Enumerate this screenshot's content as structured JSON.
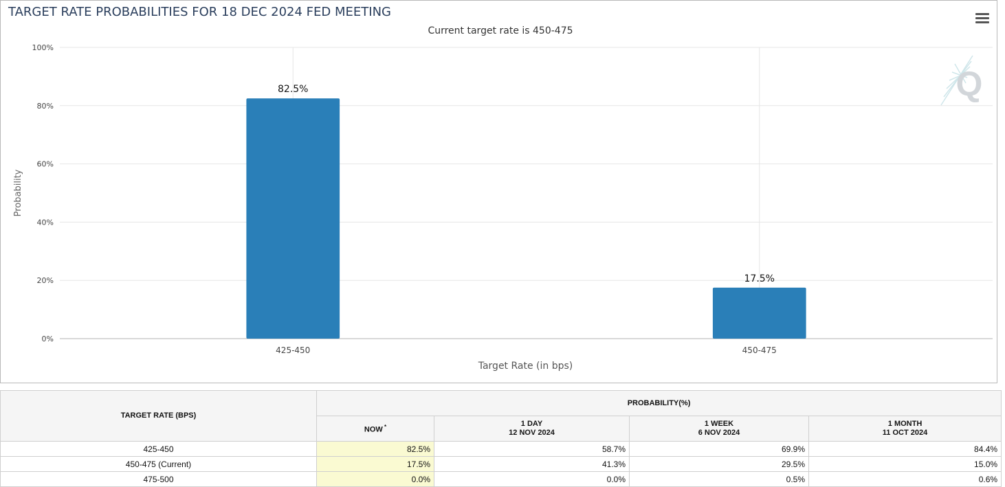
{
  "chart": {
    "title": "TARGET RATE PROBABILITIES FOR 18 DEC 2024 FED MEETING",
    "subtitle": "Current target rate is 450-475",
    "watermark_letter": "Q",
    "menu_icon": "hamburger-menu-icon"
  },
  "chart_data": {
    "type": "bar",
    "title": "TARGET RATE PROBABILITIES FOR 18 DEC 2024 FED MEETING",
    "subtitle": "Current target rate is 450-475",
    "categories": [
      "425-450",
      "450-475"
    ],
    "values": [
      82.5,
      17.5
    ],
    "data_labels": [
      "82.5%",
      "17.5%"
    ],
    "xlabel": "Target Rate (in bps)",
    "ylabel": "Probability",
    "ylim": [
      0,
      100
    ],
    "yticks": [
      0,
      20,
      40,
      60,
      80,
      100
    ],
    "ytick_labels": [
      "0%",
      "20%",
      "40%",
      "60%",
      "80%",
      "100%"
    ],
    "grid": true,
    "legend": "none",
    "bar_color": "#2a7fb8"
  },
  "table": {
    "rate_header": "TARGET RATE (BPS)",
    "prob_header": "PROBABILITY(%)",
    "columns": [
      {
        "line1": "NOW",
        "line2": "",
        "marker": "*"
      },
      {
        "line1": "1 DAY",
        "line2": "12 NOV 2024",
        "marker": ""
      },
      {
        "line1": "1 WEEK",
        "line2": "6 NOV 2024",
        "marker": ""
      },
      {
        "line1": "1 MONTH",
        "line2": "11 OCT 2024",
        "marker": ""
      }
    ],
    "rows": [
      {
        "rate": "425-450",
        "values": [
          "82.5%",
          "58.7%",
          "69.9%",
          "84.4%"
        ]
      },
      {
        "rate": "450-475 (Current)",
        "values": [
          "17.5%",
          "41.3%",
          "29.5%",
          "15.0%"
        ]
      },
      {
        "rate": "475-500",
        "values": [
          "0.0%",
          "0.0%",
          "0.5%",
          "0.6%"
        ]
      }
    ],
    "highlight_color": "#fafad2"
  }
}
